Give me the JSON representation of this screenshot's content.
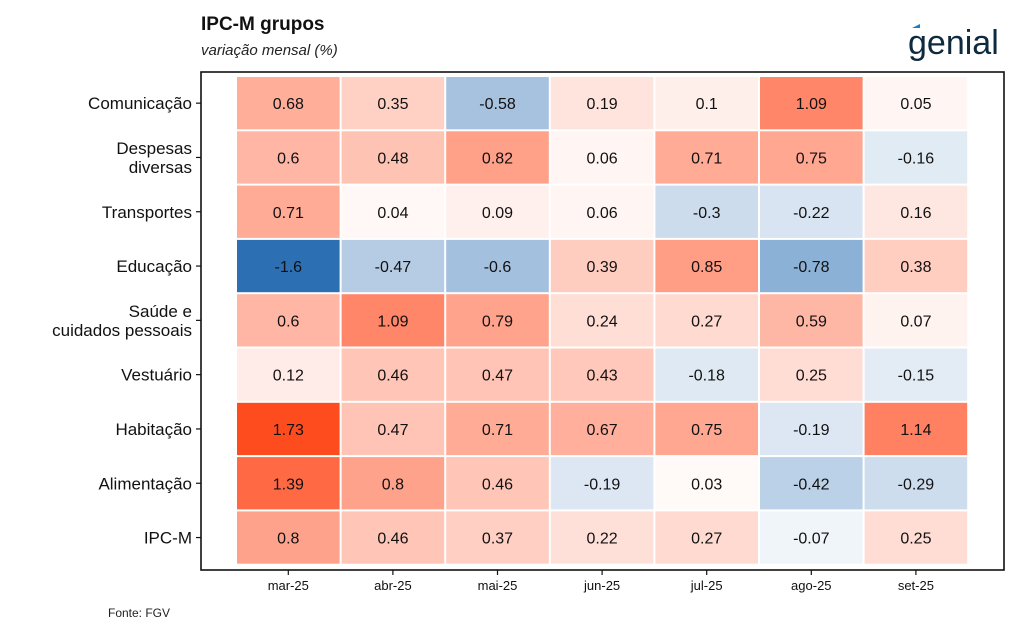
{
  "header": {
    "title": "IPC-M grupos",
    "subtitle": "variação mensal (%)"
  },
  "logo": {
    "text": "genial",
    "accent_color": "#1a7fc4",
    "text_color": "#0d2a3f"
  },
  "footer": {
    "source": "Fonte: FGV"
  },
  "colors": {
    "negative_max": "#2c6fb3",
    "neutral": "#ffffff",
    "positive_max": "#ff4c1f"
  },
  "chart_data": {
    "type": "heatmap",
    "title": "IPC-M grupos",
    "subtitle": "variação mensal (%)",
    "x_categories": [
      "mar-25",
      "abr-25",
      "mai-25",
      "jun-25",
      "jul-25",
      "ago-25",
      "set-25"
    ],
    "y_categories": [
      "Comunicação",
      "Despesas\ndiversas",
      "Transportes",
      "Educação",
      "Saúde e\ncuidados pessoais",
      "Vestuário",
      "Habitação",
      "Alimentação",
      "IPC-M"
    ],
    "values": [
      [
        0.68,
        0.35,
        -0.58,
        0.19,
        0.1,
        1.09,
        0.05
      ],
      [
        0.6,
        0.48,
        0.82,
        0.06,
        0.71,
        0.75,
        -0.16
      ],
      [
        0.71,
        0.04,
        0.09,
        0.06,
        -0.3,
        -0.22,
        0.16
      ],
      [
        -1.6,
        -0.47,
        -0.6,
        0.39,
        0.85,
        -0.78,
        0.38
      ],
      [
        0.6,
        1.09,
        0.79,
        0.24,
        0.27,
        0.59,
        0.07
      ],
      [
        0.12,
        0.46,
        0.47,
        0.43,
        -0.18,
        0.25,
        -0.15
      ],
      [
        1.73,
        0.47,
        0.71,
        0.67,
        0.75,
        -0.19,
        1.14
      ],
      [
        1.39,
        0.8,
        0.46,
        -0.19,
        0.03,
        -0.42,
        -0.29
      ],
      [
        0.8,
        0.46,
        0.37,
        0.22,
        0.27,
        -0.07,
        0.25
      ]
    ],
    "color_scale": {
      "min": -1.6,
      "mid": 0,
      "max": 1.73
    },
    "legend": "none"
  }
}
